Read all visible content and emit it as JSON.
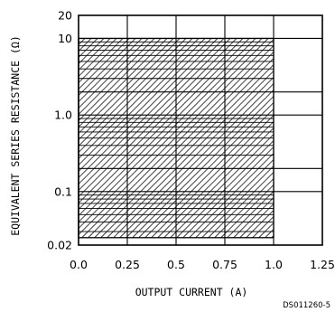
{
  "chart_data": {
    "type": "area",
    "title": "",
    "xlabel": "OUTPUT CURRENT (A)",
    "ylabel": "EQUIVALENT SERIES RESISTANCE (Ω)",
    "xlim": [
      0,
      1.25
    ],
    "ylim": [
      0.02,
      20
    ],
    "yscale": "log",
    "x_ticks": [
      0,
      0.25,
      0.5,
      0.75,
      1.0,
      1.25
    ],
    "x_tick_labels": [
      "0.0",
      "0.25",
      "0.5",
      "0.75",
      "1.0",
      "1.25"
    ],
    "y_ticks": [
      0.02,
      0.1,
      1.0,
      10,
      20
    ],
    "y_tick_labels": [
      "0.02",
      "0.1",
      "1.0",
      "10",
      "20"
    ],
    "grid": true,
    "stable_region": {
      "label": "",
      "x_range": [
        0,
        1.0
      ],
      "y_range": [
        0.025,
        10
      ],
      "fill": "diagonal-hatch"
    }
  },
  "figure_code": "DS011260-5",
  "colors": {
    "line": "#000000",
    "background": "#ffffff"
  }
}
